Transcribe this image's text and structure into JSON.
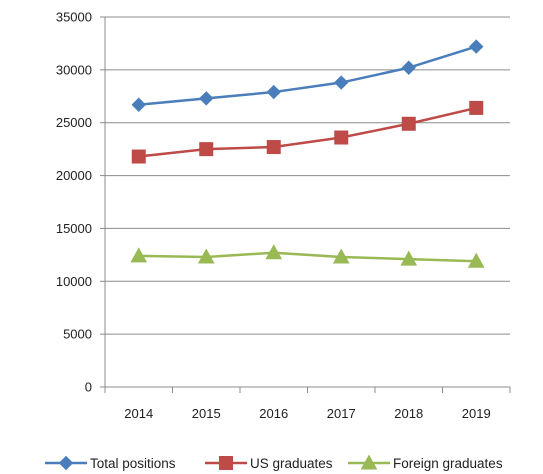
{
  "chart_data": {
    "type": "line",
    "categories": [
      "2014",
      "2015",
      "2016",
      "2017",
      "2018",
      "2019"
    ],
    "ylim": [
      0,
      35000
    ],
    "yticks": [
      0,
      5000,
      10000,
      15000,
      20000,
      25000,
      30000,
      35000
    ],
    "grid": true,
    "legend_position": "bottom",
    "series": [
      {
        "name": "Total positions",
        "marker": "diamond",
        "color": "#4a7ebb",
        "values": [
          26700,
          27300,
          27900,
          28800,
          30200,
          32200
        ]
      },
      {
        "name": "US graduates",
        "marker": "square",
        "color": "#be4b48",
        "values": [
          21800,
          22500,
          22700,
          23600,
          24900,
          26400
        ]
      },
      {
        "name": "Foreign graduates",
        "marker": "triangle",
        "color": "#98b954",
        "values": [
          12400,
          12300,
          12700,
          12300,
          12100,
          11900
        ]
      }
    ]
  }
}
